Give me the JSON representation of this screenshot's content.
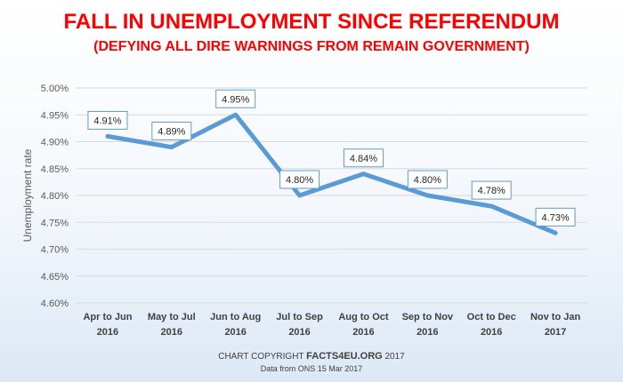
{
  "chart_data": {
    "type": "line",
    "title": "FALL IN UNEMPLOYMENT SINCE REFERENDUM",
    "subtitle": "(DEFYING ALL DIRE WARNINGS FROM REMAIN GOVERNMENT)",
    "xlabel": "",
    "ylabel": "Unemployment rate",
    "ylim": [
      4.6,
      5.0
    ],
    "yticks": [
      4.6,
      4.65,
      4.7,
      4.75,
      4.8,
      4.85,
      4.9,
      4.95,
      5.0
    ],
    "ytick_labels": [
      "4.60%",
      "4.65%",
      "4.70%",
      "4.75%",
      "4.80%",
      "4.85%",
      "4.90%",
      "4.95%",
      "5.00%"
    ],
    "categories": [
      [
        "Apr to Jun",
        "2016"
      ],
      [
        "May to Jul",
        "2016"
      ],
      [
        "Jun to Aug",
        "2016"
      ],
      [
        "Jul to Sep",
        "2016"
      ],
      [
        "Aug to Oct",
        "2016"
      ],
      [
        "Sep to Nov",
        "2016"
      ],
      [
        "Oct to Dec",
        "2016"
      ],
      [
        "Nov to Jan",
        "2017"
      ]
    ],
    "values": [
      4.91,
      4.89,
      4.95,
      4.8,
      4.84,
      4.8,
      4.78,
      4.73
    ],
    "data_labels": [
      "4.91%",
      "4.89%",
      "4.95%",
      "4.80%",
      "4.84%",
      "4.80%",
      "4.78%",
      "4.73%"
    ],
    "grid": true,
    "legend": "none",
    "line_color": "#5b9bd5",
    "title_color": "#ff0000"
  },
  "footer": {
    "copyright_prefix": "CHART COPYRIGHT ",
    "copyright_site": "FACTS4EU.ORG",
    "copyright_year": " 2017",
    "source": "Data from ONS 15 Mar 2017"
  }
}
